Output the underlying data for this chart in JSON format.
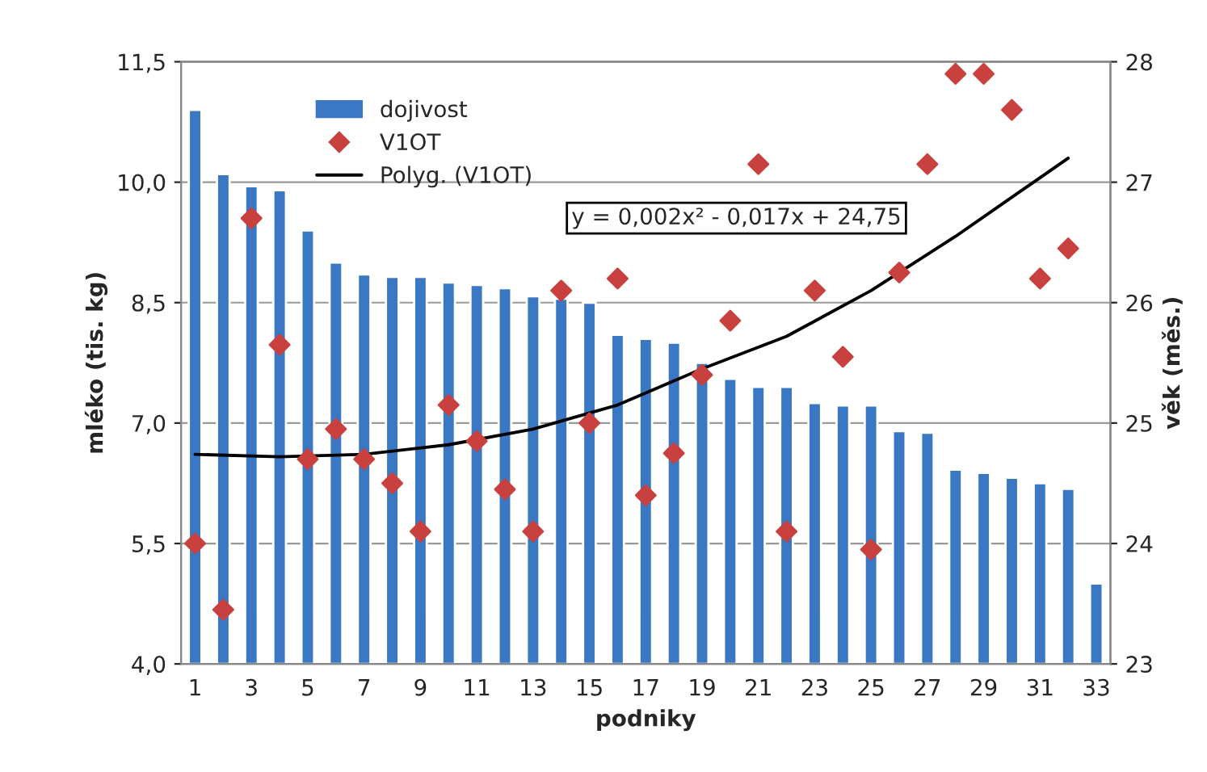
{
  "chart_data": {
    "type": "bar",
    "xlabel": "podniky",
    "ylabel": "mléko (tis. kg)",
    "y2label": "věk (měs.)",
    "x": [
      1,
      2,
      3,
      4,
      5,
      6,
      7,
      8,
      9,
      10,
      11,
      12,
      13,
      14,
      15,
      16,
      17,
      18,
      19,
      20,
      21,
      22,
      23,
      24,
      25,
      26,
      27,
      28,
      29,
      30,
      31,
      32,
      33
    ],
    "xlim": [
      0.5,
      33.5
    ],
    "xticks": [
      1,
      3,
      5,
      7,
      9,
      11,
      13,
      15,
      17,
      19,
      21,
      23,
      25,
      27,
      29,
      31,
      33
    ],
    "ylim": [
      4.0,
      11.5
    ],
    "yticks": [
      {
        "value": 4.0,
        "label": "4,0"
      },
      {
        "value": 5.5,
        "label": "5,5"
      },
      {
        "value": 7.0,
        "label": "7,0"
      },
      {
        "value": 8.5,
        "label": "8,5"
      },
      {
        "value": 10.0,
        "label": "10,0"
      },
      {
        "value": 11.5,
        "label": "11,5"
      }
    ],
    "y2lim": [
      23,
      28
    ],
    "y2ticks": [
      23,
      24,
      25,
      26,
      27,
      28
    ],
    "series": [
      {
        "name": "dojivost",
        "color": "#3a78c3",
        "values": [
          10.9,
          10.1,
          9.95,
          9.9,
          9.4,
          9.0,
          8.85,
          8.82,
          8.82,
          8.75,
          8.72,
          8.68,
          8.58,
          8.55,
          8.5,
          8.1,
          8.05,
          8.0,
          7.75,
          7.55,
          7.45,
          7.45,
          7.25,
          7.22,
          7.22,
          6.9,
          6.88,
          6.42,
          6.38,
          6.32,
          6.25,
          6.18,
          5.0
        ]
      },
      {
        "name": "V1OT",
        "type": "scatter",
        "axis": "y2",
        "marker": "diamond",
        "color": "#c8413e",
        "values": [
          24.0,
          23.45,
          26.7,
          25.65,
          24.7,
          24.95,
          24.7,
          24.5,
          24.1,
          25.15,
          24.85,
          24.45,
          24.1,
          26.1,
          25.0,
          26.2,
          24.4,
          24.75,
          25.4,
          25.85,
          27.15,
          24.1,
          26.1,
          25.55,
          23.95,
          26.25,
          27.15,
          27.9,
          27.9,
          27.6,
          26.2,
          26.45,
          null
        ]
      },
      {
        "name": "Polyg. (V1OT)",
        "type": "line",
        "axis": "y2",
        "color": "#000000",
        "x": [
          1,
          4,
          7,
          10,
          13,
          16,
          19,
          22,
          25,
          28,
          32
        ],
        "values": [
          24.74,
          24.72,
          24.74,
          24.82,
          24.95,
          25.15,
          25.45,
          25.72,
          26.1,
          26.55,
          27.2
        ]
      }
    ],
    "annotations": [
      "y = 0,002x² - 0,017x + 24,75"
    ],
    "grid": "y",
    "legend": "top"
  }
}
